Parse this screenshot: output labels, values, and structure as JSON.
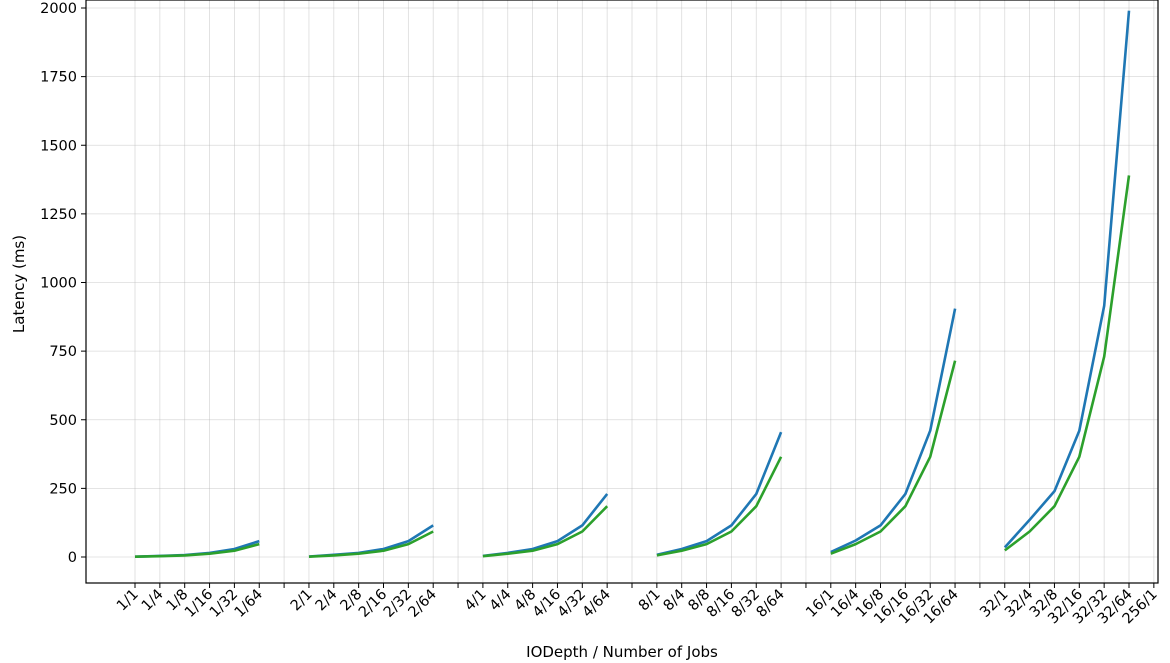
{
  "chart_data": {
    "type": "line",
    "xlabel": "IODepth / Number of Jobs",
    "ylabel": "Latency (ms)",
    "ylim": [
      -100,
      2005
    ],
    "yticks": [
      0,
      250,
      500,
      750,
      1000,
      1250,
      1500,
      1750,
      2000
    ],
    "grid": true,
    "categories": [
      "1/1",
      "1/4",
      "1/8",
      "1/16",
      "1/32",
      "1/64",
      "",
      "2/1",
      "2/4",
      "2/8",
      "2/16",
      "2/32",
      "2/64",
      "",
      "4/1",
      "4/4",
      "4/8",
      "4/16",
      "4/32",
      "4/64",
      "",
      "8/1",
      "8/4",
      "8/8",
      "8/16",
      "8/32",
      "8/64",
      "",
      "16/1",
      "16/4",
      "16/8",
      "16/16",
      "16/32",
      "16/64",
      "",
      "32/1",
      "32/4",
      "32/8",
      "32/16",
      "32/32",
      "32/64",
      "256/1"
    ],
    "series": [
      {
        "color": "#1f77b4",
        "values": [
          1,
          4,
          7,
          15,
          29,
          58,
          null,
          2,
          8,
          15,
          29,
          58,
          115,
          null,
          4,
          15,
          29,
          58,
          115,
          230,
          null,
          8,
          29,
          58,
          115,
          230,
          455,
          null,
          18,
          60,
          115,
          230,
          460,
          905,
          null,
          35,
          135,
          240,
          460,
          915,
          1990,
          null
        ]
      },
      {
        "color": "#2ca02c",
        "values": [
          1,
          3,
          6,
          12,
          23,
          47,
          null,
          1,
          6,
          12,
          23,
          47,
          93,
          null,
          3,
          12,
          23,
          47,
          93,
          185,
          null,
          6,
          23,
          47,
          93,
          185,
          365,
          null,
          12,
          47,
          93,
          185,
          365,
          715,
          null,
          24,
          93,
          185,
          365,
          730,
          1390,
          null
        ]
      }
    ]
  }
}
